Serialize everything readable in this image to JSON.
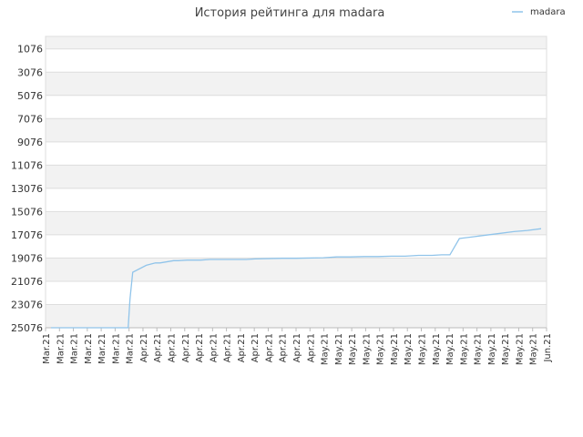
{
  "chart_data": {
    "type": "line",
    "title": "История рейтинга для madara",
    "xlabel": "",
    "ylabel": "",
    "legend": {
      "position": "top-right"
    },
    "grid": true,
    "y_inverted": true,
    "ylim": [
      25076,
      0
    ],
    "yticks": [
      1076,
      3076,
      5076,
      7076,
      9076,
      11076,
      13076,
      15076,
      17076,
      19076,
      21076,
      23076,
      25076
    ],
    "xtick_labels": [
      "Mar.21",
      "Mar.21",
      "Mar.21",
      "Mar.21",
      "Mar.21",
      "Mar.21",
      "Mar.21",
      "Apr.21",
      "Apr.21",
      "Apr.21",
      "Apr.21",
      "Apr.21",
      "Apr.21",
      "Apr.21",
      "Apr.21",
      "Apr.21",
      "Apr.21",
      "Apr.21",
      "Apr.21",
      "Apr.21",
      "May.21",
      "May.21",
      "May.21",
      "May.21",
      "May.21",
      "May.21",
      "May.21",
      "May.21",
      "May.21",
      "May.21",
      "May.21",
      "May.21",
      "May.21",
      "May.21",
      "May.21",
      "May.21",
      "Jun.21"
    ],
    "colors": {
      "series": "#90c4ea",
      "band": "#f2f2f2",
      "grid": "#dddddd",
      "axis": "#bbbbbb"
    },
    "series": [
      {
        "name": "madara",
        "x": [
          0,
          0.33,
          1,
          2,
          3,
          4,
          4.67,
          5.33,
          5.67,
          5.8,
          6,
          7,
          7.67,
          8,
          9,
          9.33,
          10,
          11,
          11.67,
          12,
          14.33,
          15,
          17,
          18,
          20,
          21,
          22,
          23,
          24,
          25,
          26,
          27,
          28,
          28.7,
          29.3,
          30,
          31,
          32,
          33,
          34,
          35,
          36
        ],
        "values": [
          25076,
          25076,
          25076,
          25076,
          25076,
          25076,
          25076,
          25076,
          25076,
          22600,
          20300,
          19700,
          19500,
          19500,
          19300,
          19300,
          19250,
          19250,
          19200,
          19200,
          19200,
          19150,
          19100,
          19100,
          19050,
          18980,
          18980,
          18950,
          18950,
          18920,
          18920,
          18850,
          18850,
          18800,
          18800,
          17400,
          17250,
          17100,
          16950,
          16800,
          16700,
          16550
        ]
      }
    ]
  }
}
